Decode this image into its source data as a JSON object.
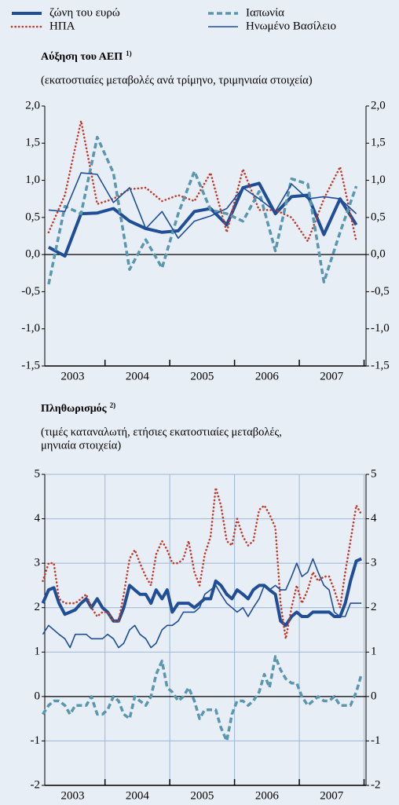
{
  "chart_data": [
    {
      "type": "line",
      "title": "Αύξηση του ΑΕΠ",
      "title_note": "1)",
      "subtitle": [
        "(εκατοστιαίες μεταβολές ανά τρίμηνο, τριμηνιαία στοιχεία)"
      ],
      "x": [
        2003.13,
        2003.38,
        2003.63,
        2003.88,
        2004.13,
        2004.38,
        2004.63,
        2004.88,
        2005.13,
        2005.38,
        2005.63,
        2005.88,
        2006.13,
        2006.38,
        2006.63,
        2006.88,
        2007.13,
        2007.38,
        2007.63,
        2007.88
      ],
      "categories": [
        "2003",
        "2004",
        "2005",
        "2006",
        "2007"
      ],
      "xlim": [
        2003.07,
        2008.03
      ],
      "xticks": [
        2003,
        2004,
        2005,
        2006,
        2007,
        2008
      ],
      "ylim": [
        -1.5,
        2.0
      ],
      "yticks": [
        {
          "value": -1.5,
          "label": "-1,5"
        },
        {
          "value": -1.0,
          "label": "-1,0"
        },
        {
          "value": -0.5,
          "label": "-0,5"
        },
        {
          "value": 0,
          "label": "0,0"
        },
        {
          "value": 0.5,
          "label": "0,5"
        },
        {
          "value": 1.0,
          "label": "1,0"
        },
        {
          "value": 1.5,
          "label": "1,5"
        },
        {
          "value": 2.0,
          "label": "2,0"
        }
      ],
      "grid": false,
      "series": [
        {
          "name": "ζώνη του ευρώ",
          "color": "#1f4e96",
          "style": "thick",
          "values": [
            0.1,
            -0.02,
            0.55,
            0.56,
            0.62,
            0.45,
            0.35,
            0.3,
            0.32,
            0.58,
            0.62,
            0.4,
            0.9,
            0.96,
            0.55,
            0.78,
            0.8,
            0.27,
            0.75,
            0.4
          ]
        },
        {
          "name": "ΗΠΑ",
          "color": "#c0392b",
          "style": "dotted",
          "values": [
            0.3,
            0.8,
            1.8,
            0.68,
            0.75,
            0.88,
            0.9,
            0.72,
            0.8,
            0.72,
            1.1,
            0.3,
            1.15,
            0.6,
            0.6,
            0.5,
            0.18,
            0.75,
            1.18,
            0.18
          ]
        },
        {
          "name": "Ιαπωνία",
          "color": "#5a96ad",
          "style": "dashed",
          "values": [
            -0.4,
            0.65,
            0.55,
            1.58,
            1.1,
            -0.2,
            0.2,
            -0.18,
            0.55,
            1.12,
            0.6,
            0.55,
            0.45,
            0.85,
            0.05,
            1.02,
            0.95,
            -0.37,
            0.3,
            0.92
          ]
        },
        {
          "name": "Ηνωμένο Βασίλειο",
          "color": "#1f4e96",
          "style": "thin",
          "values": [
            0.6,
            0.58,
            1.1,
            1.08,
            0.7,
            0.9,
            0.35,
            0.58,
            0.22,
            0.45,
            0.52,
            0.62,
            0.9,
            0.75,
            0.58,
            0.95,
            0.75,
            0.78,
            0.75,
            0.55
          ]
        }
      ]
    },
    {
      "type": "line",
      "title": "Πληθωρισμός",
      "title_note": "2)",
      "subtitle": [
        "(τιμές καταναλωτή, ετήσιες εκατοστιαίες μεταβολές,",
        "μηνιαία στοιχεία)"
      ],
      "x": [
        2003.04,
        2003.13,
        2003.21,
        2003.29,
        2003.38,
        2003.46,
        2003.54,
        2003.63,
        2003.71,
        2003.79,
        2003.88,
        2003.96,
        2004.04,
        2004.13,
        2004.21,
        2004.29,
        2004.38,
        2004.46,
        2004.54,
        2004.63,
        2004.71,
        2004.79,
        2004.88,
        2004.96,
        2005.04,
        2005.13,
        2005.21,
        2005.29,
        2005.38,
        2005.46,
        2005.54,
        2005.63,
        2005.71,
        2005.79,
        2005.88,
        2005.96,
        2006.04,
        2006.13,
        2006.21,
        2006.29,
        2006.38,
        2006.46,
        2006.54,
        2006.63,
        2006.71,
        2006.79,
        2006.88,
        2006.96,
        2007.04,
        2007.13,
        2007.21,
        2007.29,
        2007.38,
        2007.46,
        2007.54,
        2007.63,
        2007.71,
        2007.79,
        2007.88,
        2007.96
      ],
      "categories": [
        "2003",
        "2004",
        "2005",
        "2006",
        "2007"
      ],
      "xlim": [
        2003.07,
        2008.03
      ],
      "xticks": [
        2003,
        2004,
        2005,
        2006,
        2007,
        2008
      ],
      "ylim": [
        -2,
        5
      ],
      "yticks": [
        -2,
        -1,
        0,
        1,
        2,
        3,
        4,
        5
      ],
      "grid": true,
      "series": [
        {
          "color": "#1f4e96",
          "style": "thick",
          "values": [
            2.1,
            2.4,
            2.45,
            2.1,
            1.85,
            1.9,
            1.95,
            2.1,
            2.2,
            2.0,
            2.2,
            2.0,
            1.9,
            1.7,
            1.7,
            2.0,
            2.5,
            2.4,
            2.3,
            2.3,
            2.1,
            2.4,
            2.2,
            2.4,
            1.9,
            2.1,
            2.1,
            2.1,
            2.0,
            2.1,
            2.2,
            2.2,
            2.6,
            2.5,
            2.3,
            2.2,
            2.4,
            2.3,
            2.2,
            2.4,
            2.5,
            2.5,
            2.4,
            2.3,
            1.7,
            1.6,
            1.8,
            1.9,
            1.8,
            1.8,
            1.9,
            1.9,
            1.9,
            1.9,
            1.8,
            1.8,
            2.1,
            2.6,
            3.05,
            3.1
          ]
        },
        {
          "color": "#c0392b",
          "style": "dotted",
          "values": [
            2.6,
            3.0,
            3.0,
            2.2,
            2.1,
            2.1,
            2.1,
            2.2,
            2.3,
            2.0,
            1.8,
            1.9,
            1.9,
            1.7,
            1.7,
            2.3,
            3.1,
            3.3,
            3.0,
            2.7,
            2.5,
            3.2,
            3.5,
            3.3,
            3.0,
            3.0,
            3.1,
            3.5,
            2.8,
            2.5,
            3.2,
            3.6,
            4.7,
            4.3,
            3.5,
            3.4,
            4.0,
            3.6,
            3.4,
            3.5,
            4.2,
            4.3,
            4.1,
            3.8,
            2.1,
            1.3,
            2.0,
            2.5,
            2.1,
            2.4,
            2.8,
            2.6,
            2.7,
            2.7,
            2.4,
            2.0,
            2.8,
            3.5,
            4.3,
            4.1
          ]
        },
        {
          "color": "#5a96ad",
          "style": "dashed",
          "values": [
            -0.4,
            -0.2,
            -0.1,
            -0.1,
            -0.2,
            -0.4,
            -0.2,
            -0.2,
            -0.2,
            0.0,
            -0.4,
            -0.4,
            -0.3,
            0.0,
            -0.1,
            -0.4,
            -0.5,
            0.0,
            -0.1,
            -0.2,
            0.0,
            0.5,
            0.8,
            0.2,
            0.1,
            -0.1,
            0.0,
            0.2,
            -0.1,
            -0.5,
            -0.3,
            -0.3,
            -0.3,
            -0.7,
            -1.0,
            -0.4,
            -0.1,
            -0.1,
            -0.2,
            -0.1,
            0.1,
            0.5,
            0.2,
            0.9,
            0.6,
            0.4,
            0.3,
            0.3,
            0.0,
            -0.2,
            -0.1,
            0.0,
            -0.1,
            -0.1,
            0.0,
            -0.2,
            -0.2,
            -0.2,
            0.1,
            0.5
          ]
        },
        {
          "color": "#1f4e96",
          "style": "thin",
          "values": [
            1.4,
            1.6,
            1.5,
            1.4,
            1.3,
            1.1,
            1.4,
            1.4,
            1.4,
            1.3,
            1.3,
            1.3,
            1.4,
            1.3,
            1.1,
            1.2,
            1.5,
            1.6,
            1.4,
            1.3,
            1.1,
            1.2,
            1.5,
            1.6,
            1.6,
            1.7,
            1.9,
            1.9,
            1.9,
            2.0,
            2.3,
            2.4,
            2.5,
            2.3,
            2.1,
            2.0,
            1.9,
            2.0,
            1.8,
            2.0,
            2.2,
            2.5,
            2.4,
            2.5,
            2.4,
            2.4,
            2.7,
            3.0,
            2.7,
            2.8,
            3.1,
            2.8,
            2.5,
            2.4,
            1.9,
            1.8,
            1.8,
            2.1,
            2.1,
            2.1
          ]
        }
      ]
    }
  ]
}
